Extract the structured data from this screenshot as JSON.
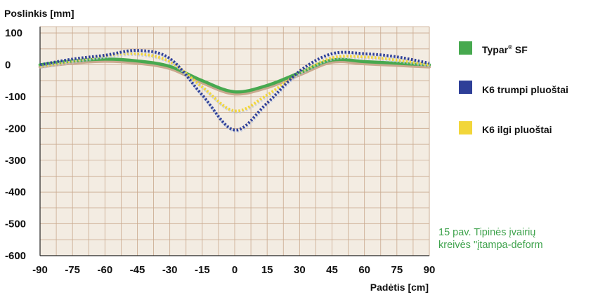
{
  "chart_data": {
    "type": "line",
    "ylabel": "Poslinkis [mm]",
    "xlabel": "Padėtis [cm]",
    "xlim": [
      -90,
      90
    ],
    "ylim": [
      -600,
      120
    ],
    "xticks": [
      -90,
      -75,
      -60,
      -45,
      -30,
      -15,
      0,
      15,
      30,
      45,
      60,
      75,
      90
    ],
    "yticks": [
      100,
      0,
      -100,
      -200,
      -300,
      -400,
      -500,
      -600
    ],
    "grid": true,
    "x": [
      -90,
      -75,
      -60,
      -45,
      -30,
      -15,
      0,
      15,
      30,
      45,
      60,
      75,
      90
    ],
    "series": [
      {
        "name": "Typar",
        "name_sup": "®",
        "name_suffix": " SF",
        "color": "#47a94f",
        "shadow": "#c9a98e",
        "style": "solid",
        "values": [
          0,
          12,
          18,
          12,
          -5,
          -50,
          -85,
          -65,
          -25,
          15,
          10,
          5,
          0
        ]
      },
      {
        "name": "K6 trumpi pluoštai",
        "color": "#2e3f98",
        "style": "dotted",
        "values": [
          0,
          18,
          30,
          45,
          20,
          -95,
          -205,
          -120,
          -20,
          35,
          35,
          25,
          5
        ]
      },
      {
        "name": "K6 ilgi pluoštai",
        "color": "#f2d63a",
        "style": "dotted",
        "values": [
          -5,
          12,
          28,
          35,
          10,
          -70,
          -145,
          -95,
          -25,
          22,
          25,
          15,
          0
        ]
      }
    ],
    "legend_position": "right",
    "plot_background": "#f3ece2",
    "grid_color": "#c9a98e"
  },
  "caption": {
    "line1": "15 pav. Tipinės įvairių",
    "line2": "kreivės \"įtampa-deform"
  }
}
